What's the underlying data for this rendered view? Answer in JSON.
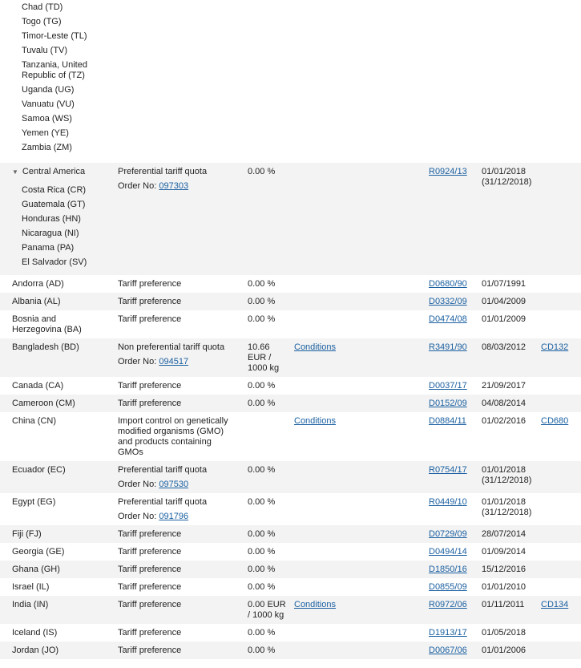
{
  "labels": {
    "order_no": "Order No:"
  },
  "top_members": [
    "Chad (TD)",
    "Togo (TG)",
    "Timor-Leste (TL)",
    "Tuvalu (TV)",
    "Tanzania, United Republic of (TZ)",
    "Uganda (UG)",
    "Vanuatu (VU)",
    "Samoa (WS)",
    "Yemen (YE)",
    "Zambia (ZM)"
  ],
  "rows": [
    {
      "country": "Central America",
      "members": [
        "Costa Rica (CR)",
        "Guatemala (GT)",
        "Honduras (HN)",
        "Nicaragua (NI)",
        "Panama (PA)",
        "El Salvador (SV)"
      ],
      "measure": "Preferential tariff quota",
      "order_no": "097303",
      "duty": "0.00 %",
      "regulation": "R0924/13",
      "start": "01/01/2018",
      "end": "(31/12/2018)"
    },
    {
      "country": "Andorra (AD)",
      "measure": "Tariff preference",
      "duty": "0.00 %",
      "regulation": "D0680/90",
      "start": "01/07/1991"
    },
    {
      "country": "Albania (AL)",
      "measure": "Tariff preference",
      "duty": "0.00 %",
      "regulation": "D0332/09",
      "start": "01/04/2009"
    },
    {
      "country": "Bosnia and Herzegovina (BA)",
      "measure": "Tariff preference",
      "duty": "0.00 %",
      "regulation": "D0474/08",
      "start": "01/01/2009"
    },
    {
      "country": "Bangladesh (BD)",
      "measure": "Non preferential tariff quota",
      "order_no": "094517",
      "duty": "10.66 EUR / 1000 kg",
      "conditions": "Conditions",
      "regulation": "R3491/90",
      "start": "08/03/2012",
      "footnote": "CD132"
    },
    {
      "country": "Canada (CA)",
      "measure": "Tariff preference",
      "duty": "0.00 %",
      "regulation": "D0037/17",
      "start": "21/09/2017"
    },
    {
      "country": "Cameroon (CM)",
      "measure": "Tariff preference",
      "duty": "0.00 %",
      "regulation": "D0152/09",
      "start": "04/08/2014"
    },
    {
      "country": "China (CN)",
      "measure": "Import control on genetically modified organisms (GMO) and products containing GMOs",
      "conditions": "Conditions",
      "regulation": "D0884/11",
      "start": "01/02/2016",
      "footnote": "CD680"
    },
    {
      "country": "Ecuador (EC)",
      "measure": "Preferential tariff quota",
      "order_no": "097530",
      "duty": "0.00 %",
      "regulation": "R0754/17",
      "start": "01/01/2018",
      "end": "(31/12/2018)"
    },
    {
      "country": "Egypt (EG)",
      "measure": "Preferential tariff quota",
      "order_no": "091796",
      "duty": "0.00 %",
      "regulation": "R0449/10",
      "start": "01/01/2018",
      "end": "(31/12/2018)"
    },
    {
      "country": "Fiji (FJ)",
      "measure": "Tariff preference",
      "duty": "0.00 %",
      "regulation": "D0729/09",
      "start": "28/07/2014"
    },
    {
      "country": "Georgia (GE)",
      "measure": "Tariff preference",
      "duty": "0.00 %",
      "regulation": "D0494/14",
      "start": "01/09/2014"
    },
    {
      "country": "Ghana (GH)",
      "measure": "Tariff preference",
      "duty": "0.00 %",
      "regulation": "D1850/16",
      "start": "15/12/2016"
    },
    {
      "country": "Israel (IL)",
      "measure": "Tariff preference",
      "duty": "0.00 %",
      "regulation": "D0855/09",
      "start": "01/01/2010"
    },
    {
      "country": "India (IN)",
      "measure": "Tariff preference",
      "duty": "0.00 EUR / 1000 kg",
      "conditions": "Conditions",
      "regulation": "R0972/06",
      "start": "01/11/2011",
      "footnote": "CD134"
    },
    {
      "country": "Iceland (IS)",
      "measure": "Tariff preference",
      "duty": "0.00 %",
      "regulation": "D1913/17",
      "start": "01/05/2018"
    },
    {
      "country": "Jordan (JO)",
      "measure": "Tariff preference",
      "duty": "0.00 %",
      "regulation": "D0067/06",
      "start": "01/01/2006"
    }
  ]
}
